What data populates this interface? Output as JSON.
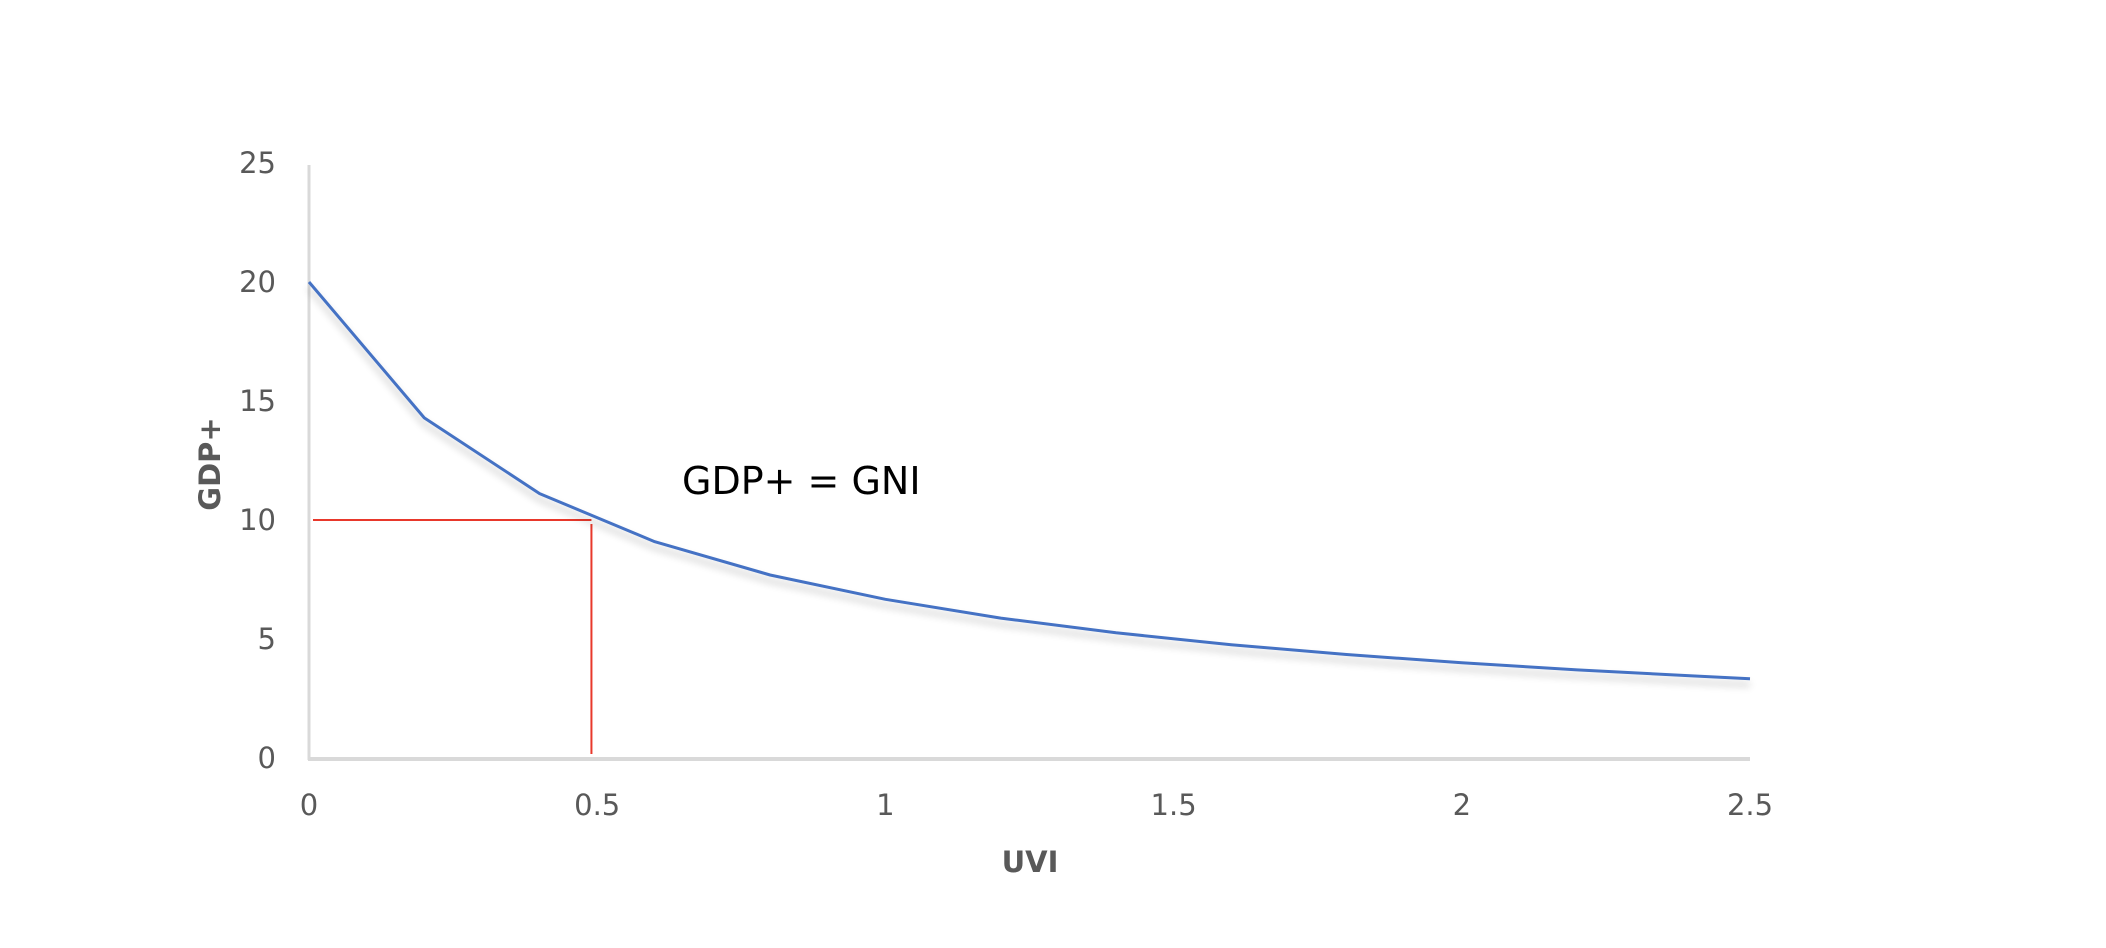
{
  "chart_data": {
    "type": "line",
    "title": "",
    "xlabel": "UVI",
    "ylabel": "GDP+",
    "xlim": [
      0,
      2.5
    ],
    "ylim": [
      0,
      25
    ],
    "grid": false,
    "legend": null,
    "x_ticks": [
      "0",
      "0.5",
      "1",
      "1.5",
      "2",
      "2.5"
    ],
    "y_ticks": [
      "0",
      "5",
      "10",
      "15",
      "20",
      "25"
    ],
    "x": [
      0,
      0.2,
      0.4,
      0.6,
      0.8,
      1.0,
      1.2,
      1.4,
      1.6,
      1.8,
      2.0,
      2.2,
      2.4,
      2.5
    ],
    "series": [
      {
        "name": "GDP+ = GNI",
        "color": "#4472C4",
        "values": [
          20,
          14.29,
          11.11,
          9.09,
          7.69,
          6.67,
          5.88,
          5.26,
          4.76,
          4.35,
          4.0,
          3.7,
          3.45,
          3.33
        ]
      }
    ],
    "annotations": [
      {
        "text": "GDP+ = GNI",
        "x": 0.64,
        "y": 11.6
      }
    ],
    "reference_lines": {
      "color": "#E8382B",
      "horizontal": {
        "y": 10,
        "x_from": 0,
        "x_to": 0.49
      },
      "vertical": {
        "x": 0.49,
        "y_from": 0,
        "y_to": 10
      }
    }
  }
}
